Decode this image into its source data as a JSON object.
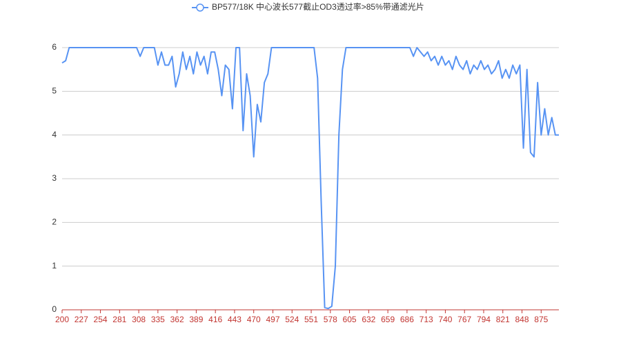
{
  "chart_data": {
    "type": "line",
    "x": [
      200,
      205,
      210,
      215,
      220,
      225,
      230,
      235,
      240,
      245,
      250,
      255,
      260,
      265,
      270,
      275,
      280,
      285,
      290,
      295,
      300,
      305,
      310,
      315,
      320,
      325,
      330,
      335,
      340,
      345,
      350,
      355,
      360,
      365,
      370,
      375,
      380,
      385,
      390,
      395,
      400,
      405,
      410,
      415,
      420,
      425,
      430,
      435,
      440,
      445,
      450,
      455,
      460,
      465,
      470,
      475,
      480,
      485,
      490,
      495,
      500,
      505,
      510,
      515,
      520,
      525,
      530,
      535,
      540,
      545,
      550,
      555,
      560,
      565,
      570,
      575,
      580,
      585,
      590,
      595,
      600,
      605,
      610,
      615,
      620,
      625,
      630,
      635,
      640,
      645,
      650,
      655,
      660,
      665,
      670,
      675,
      680,
      685,
      690,
      695,
      700,
      705,
      710,
      715,
      720,
      725,
      730,
      735,
      740,
      745,
      750,
      755,
      760,
      765,
      770,
      775,
      780,
      785,
      790,
      795,
      800,
      805,
      810,
      815,
      820,
      825,
      830,
      835,
      840,
      845,
      850,
      855,
      860,
      865,
      870,
      875,
      880,
      885,
      890,
      895,
      900
    ],
    "series": [
      {
        "name": "BP577/18K 中心波长577截止OD3透过率>85%带通滤光片",
        "color": "#5793f3",
        "values": [
          5.65,
          5.7,
          6,
          6,
          6,
          6,
          6,
          6,
          6,
          6,
          6,
          6,
          6,
          6,
          6,
          6,
          6,
          6,
          6,
          6,
          6,
          6,
          5.8,
          6,
          6,
          6,
          6,
          5.6,
          5.9,
          5.6,
          5.6,
          5.8,
          5.1,
          5.4,
          5.9,
          5.5,
          5.8,
          5.4,
          5.9,
          5.6,
          5.8,
          5.4,
          5.9,
          5.9,
          5.5,
          4.9,
          5.6,
          5.5,
          4.6,
          6,
          6,
          4.1,
          5.4,
          4.9,
          3.5,
          4.7,
          4.3,
          5.2,
          5.4,
          6,
          6,
          6,
          6,
          6,
          6,
          6,
          6,
          6,
          6,
          6,
          6,
          6,
          5.3,
          2.5,
          0.05,
          0.03,
          0.08,
          1.0,
          4,
          5.5,
          6,
          6,
          6,
          6,
          6,
          6,
          6,
          6,
          6,
          6,
          6,
          6,
          6,
          6,
          6,
          6,
          6,
          6,
          6,
          5.8,
          6,
          5.9,
          5.8,
          5.9,
          5.7,
          5.8,
          5.6,
          5.8,
          5.6,
          5.7,
          5.5,
          5.8,
          5.6,
          5.5,
          5.7,
          5.4,
          5.6,
          5.5,
          5.7,
          5.5,
          5.6,
          5.4,
          5.5,
          5.7,
          5.3,
          5.5,
          5.3,
          5.6,
          5.4,
          5.6,
          3.7,
          5.5,
          3.6,
          3.5,
          5.2,
          4.0,
          4.6,
          4.0,
          4.4,
          4.0,
          4.0
        ]
      }
    ],
    "xlim": [
      200,
      900
    ],
    "xticks": [
      200,
      227,
      254,
      281,
      308,
      335,
      362,
      389,
      416,
      443,
      470,
      497,
      524,
      551,
      578,
      605,
      632,
      659,
      686,
      713,
      740,
      767,
      794,
      821,
      848,
      875
    ],
    "ylim": [
      0,
      6
    ],
    "yticks": [
      0,
      1,
      2,
      3,
      4,
      5,
      6
    ],
    "grid": true
  }
}
